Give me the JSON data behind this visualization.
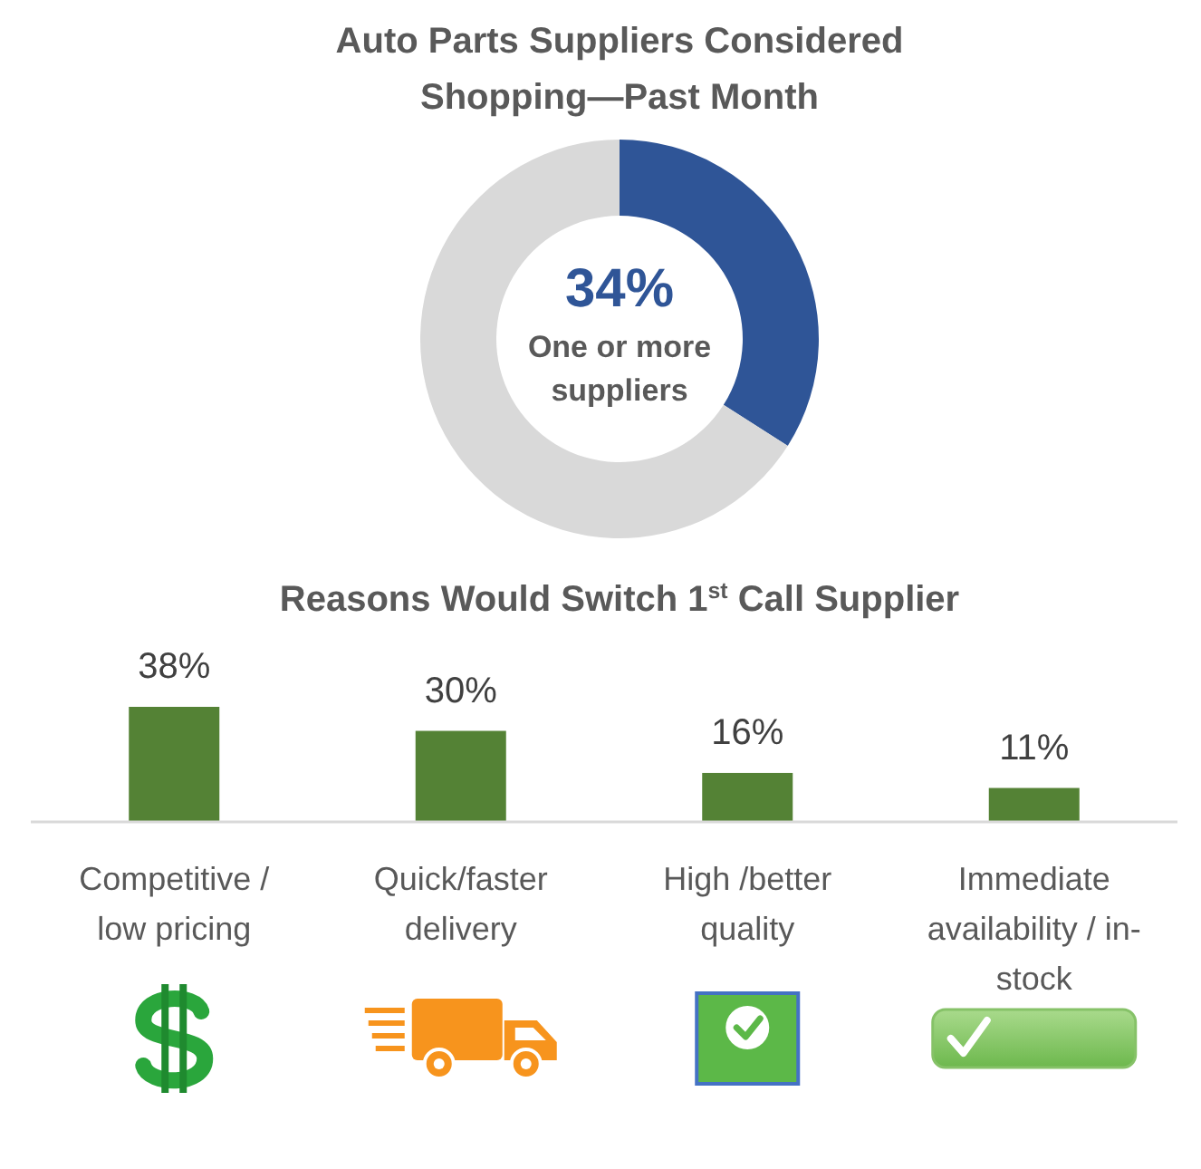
{
  "chart_data": [
    {
      "type": "donut",
      "title": "Auto Parts Suppliers Considered Shopping—Past Month",
      "categories": [
        "One or more suppliers",
        null
      ],
      "values": [
        34,
        66
      ],
      "colors": [
        "#2f5597",
        "#d9d9d9"
      ],
      "value_labels": [
        "34%",
        null
      ]
    },
    {
      "type": "bar",
      "title": "Reasons Would Switch 1$^{st}$ Call Supplier",
      "categories": [
        "Competitive / low pricing",
        "Quick/faster delivery",
        "High /better quality",
        "Immediate availability / in-stock"
      ],
      "values": [
        38,
        30,
        16,
        11
      ],
      "color": "#548235",
      "value_labels": [
        "38%",
        "30%",
        "16%",
        "11%"
      ]
    }
  ]
}
